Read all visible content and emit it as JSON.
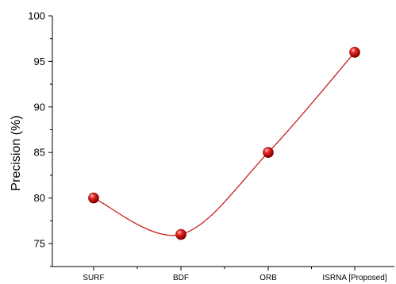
{
  "chart_data": {
    "type": "line",
    "title": "",
    "xlabel": "",
    "ylabel": "Precision (%)",
    "categories": [
      "SURF",
      "BDF",
      "ORB",
      "ISRNA [Proposed]"
    ],
    "series": [
      {
        "values": [
          80,
          76,
          85,
          96
        ]
      }
    ],
    "ylim": [
      73,
      100
    ],
    "yticks": [
      75,
      80,
      85,
      90,
      95,
      100
    ],
    "grid": false,
    "line_color": "#cc1f1f",
    "marker_color": "#e01818",
    "smooth": true
  }
}
